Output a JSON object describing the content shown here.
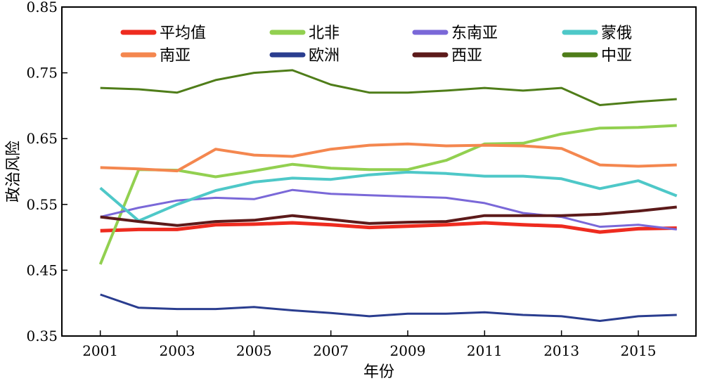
{
  "chart_data": {
    "type": "line",
    "xlabel": "年份",
    "ylabel": "政治风险",
    "xlim": [
      2000,
      2016.5
    ],
    "ylim": [
      0.35,
      0.85
    ],
    "x_ticks": [
      2001,
      2003,
      2005,
      2007,
      2009,
      2011,
      2013,
      2015
    ],
    "x_tick_labels": [
      "2001",
      "2003",
      "2005",
      "2007",
      "2009",
      "2011",
      "2013",
      "2015"
    ],
    "y_ticks": [
      0.35,
      0.45,
      0.55,
      0.65,
      0.75,
      0.85
    ],
    "y_tick_labels": [
      "0.35",
      "0.45",
      "0.55",
      "0.65",
      "0.75",
      "0.85"
    ],
    "grid": false,
    "legend_position": "top",
    "x": [
      2001,
      2002,
      2003,
      2004,
      2005,
      2006,
      2007,
      2008,
      2009,
      2010,
      2011,
      2012,
      2013,
      2014,
      2015,
      2016
    ],
    "series": [
      {
        "name": "平均值",
        "color": "#ee2b1f",
        "values": [
          0.51,
          0.512,
          0.512,
          0.519,
          0.52,
          0.522,
          0.519,
          0.515,
          0.517,
          0.519,
          0.522,
          0.519,
          0.517,
          0.508,
          0.513,
          0.514
        ]
      },
      {
        "name": "北非",
        "color": "#92d050",
        "values": [
          0.459,
          0.603,
          0.602,
          0.592,
          0.601,
          0.611,
          0.605,
          0.603,
          0.603,
          0.617,
          0.642,
          0.643,
          0.657,
          0.666,
          0.667,
          0.67
        ]
      },
      {
        "name": "东南亚",
        "color": "#7a68d8",
        "values": [
          0.531,
          0.545,
          0.556,
          0.56,
          0.558,
          0.572,
          0.566,
          0.564,
          0.562,
          0.56,
          0.552,
          0.537,
          0.531,
          0.516,
          0.519,
          0.512
        ]
      },
      {
        "name": "蒙俄",
        "color": "#4ec8c8",
        "values": [
          0.575,
          0.525,
          0.55,
          0.571,
          0.584,
          0.59,
          0.588,
          0.595,
          0.599,
          0.597,
          0.593,
          0.593,
          0.589,
          0.574,
          0.586,
          0.563
        ]
      },
      {
        "name": "南亚",
        "color": "#f4874f",
        "values": [
          0.606,
          0.604,
          0.601,
          0.634,
          0.625,
          0.623,
          0.634,
          0.64,
          0.642,
          0.639,
          0.64,
          0.639,
          0.635,
          0.61,
          0.608,
          0.61
        ]
      },
      {
        "name": "欧洲",
        "color": "#2a3d8f",
        "values": [
          0.413,
          0.393,
          0.391,
          0.391,
          0.394,
          0.389,
          0.385,
          0.38,
          0.384,
          0.384,
          0.386,
          0.382,
          0.38,
          0.373,
          0.38,
          0.382
        ]
      },
      {
        "name": "西亚",
        "color": "#5c1a1a",
        "values": [
          0.531,
          0.524,
          0.518,
          0.524,
          0.526,
          0.533,
          0.527,
          0.521,
          0.523,
          0.524,
          0.533,
          0.533,
          0.533,
          0.535,
          0.54,
          0.546
        ]
      },
      {
        "name": "中亚",
        "color": "#4f7d19",
        "values": [
          0.727,
          0.725,
          0.72,
          0.739,
          0.75,
          0.754,
          0.732,
          0.72,
          0.72,
          0.723,
          0.727,
          0.723,
          0.727,
          0.701,
          0.706,
          0.71
        ]
      }
    ]
  }
}
